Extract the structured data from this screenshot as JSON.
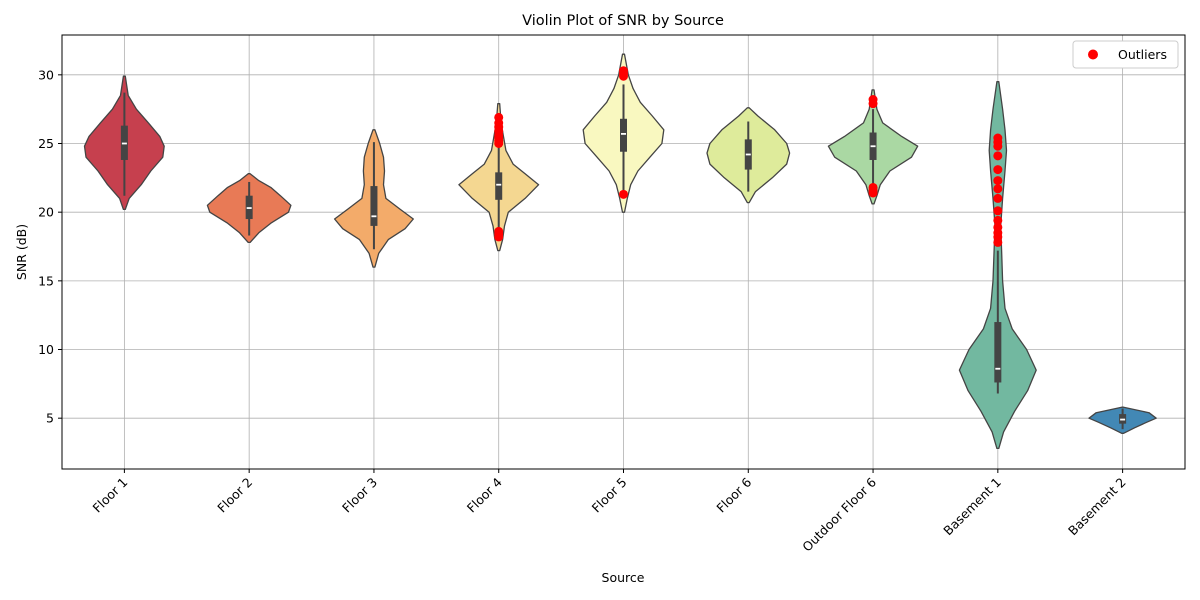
{
  "chart_data": {
    "type": "violin",
    "title": "Violin Plot of SNR by Source",
    "xlabel": "Source",
    "ylabel": "SNR (dB)",
    "ylim": [
      1.3,
      32.9
    ],
    "yticks": [
      5,
      10,
      15,
      20,
      25,
      30
    ],
    "grid": true,
    "legend": {
      "position": "top-right",
      "entries": [
        {
          "label": "Outliers",
          "color": "#ff0000"
        }
      ]
    },
    "categories": [
      "Floor 1",
      "Floor 2",
      "Floor 3",
      "Floor 4",
      "Floor 5",
      "Floor 6",
      "Outdoor Floor 6",
      "Basement 1",
      "Basement 2"
    ],
    "series": [
      {
        "category": "Floor 1",
        "color": "#c6404e",
        "density": [
          [
            20.2,
            0.02
          ],
          [
            21,
            0.1
          ],
          [
            22,
            0.35
          ],
          [
            23,
            0.55
          ],
          [
            24,
            0.8
          ],
          [
            24.8,
            0.83
          ],
          [
            25.5,
            0.74
          ],
          [
            26.5,
            0.5
          ],
          [
            27.5,
            0.25
          ],
          [
            28.5,
            0.08
          ],
          [
            29.9,
            0.02
          ]
        ],
        "q1": 23.8,
        "median": 25.0,
        "q3": 26.3,
        "whisker_low": 21.2,
        "whisker_high": 28.7,
        "outliers": []
      },
      {
        "category": "Floor 2",
        "color": "#e87a56",
        "density": [
          [
            17.8,
            0.02
          ],
          [
            18.5,
            0.2
          ],
          [
            19.2,
            0.45
          ],
          [
            20,
            0.82
          ],
          [
            20.5,
            0.87
          ],
          [
            21.2,
            0.65
          ],
          [
            21.8,
            0.45
          ],
          [
            22.3,
            0.2
          ],
          [
            22.8,
            0.02
          ]
        ],
        "q1": 19.5,
        "median": 20.3,
        "q3": 21.2,
        "whisker_low": 18.3,
        "whisker_high": 22.2,
        "outliers": []
      },
      {
        "category": "Floor 3",
        "color": "#f3ab6a",
        "density": [
          [
            16,
            0.02
          ],
          [
            17,
            0.1
          ],
          [
            18,
            0.3
          ],
          [
            18.8,
            0.65
          ],
          [
            19.5,
            0.82
          ],
          [
            20.2,
            0.55
          ],
          [
            21,
            0.25
          ],
          [
            22,
            0.2
          ],
          [
            23,
            0.22
          ],
          [
            24,
            0.2
          ],
          [
            25,
            0.12
          ],
          [
            26,
            0.02
          ]
        ],
        "q1": 19.0,
        "median": 19.7,
        "q3": 21.9,
        "whisker_low": 17.3,
        "whisker_high": 25.1,
        "outliers": []
      },
      {
        "category": "Floor 4",
        "color": "#f4d791",
        "density": [
          [
            17.2,
            0.02
          ],
          [
            18,
            0.08
          ],
          [
            19,
            0.12
          ],
          [
            20,
            0.2
          ],
          [
            21,
            0.55
          ],
          [
            22,
            0.83
          ],
          [
            22.8,
            0.55
          ],
          [
            23.5,
            0.3
          ],
          [
            24.5,
            0.15
          ],
          [
            25.5,
            0.1
          ],
          [
            26.5,
            0.05
          ],
          [
            27.9,
            0.02
          ]
        ],
        "q1": 20.9,
        "median": 22.0,
        "q3": 22.9,
        "whisker_low": 18.6,
        "whisker_high": 24.8,
        "outliers": [
          26.9,
          26.5,
          26.2,
          25.9,
          25.6,
          25.4,
          25.2,
          25.0,
          18.6,
          18.4,
          18.2
        ]
      },
      {
        "category": "Floor 5",
        "color": "#f9f8c0",
        "density": [
          [
            20,
            0.02
          ],
          [
            21,
            0.08
          ],
          [
            22,
            0.15
          ],
          [
            23,
            0.3
          ],
          [
            24,
            0.55
          ],
          [
            25,
            0.8
          ],
          [
            26,
            0.84
          ],
          [
            27,
            0.6
          ],
          [
            28,
            0.35
          ],
          [
            29,
            0.2
          ],
          [
            30,
            0.1
          ],
          [
            31.5,
            0.02
          ]
        ],
        "q1": 24.4,
        "median": 25.7,
        "q3": 26.8,
        "whisker_low": 21.4,
        "whisker_high": 29.3,
        "outliers": [
          30.3,
          30.1,
          29.9,
          21.3
        ]
      },
      {
        "category": "Floor 6",
        "color": "#deeb9b",
        "density": [
          [
            20.7,
            0.02
          ],
          [
            21.5,
            0.15
          ],
          [
            22.5,
            0.5
          ],
          [
            23.5,
            0.8
          ],
          [
            24.3,
            0.86
          ],
          [
            25,
            0.8
          ],
          [
            26,
            0.55
          ],
          [
            27,
            0.2
          ],
          [
            27.6,
            0.02
          ]
        ],
        "q1": 23.1,
        "median": 24.2,
        "q3": 25.3,
        "whisker_low": 21.5,
        "whisker_high": 26.6,
        "outliers": []
      },
      {
        "category": "Outdoor Floor 6",
        "color": "#aad8a3",
        "density": [
          [
            20.6,
            0.02
          ],
          [
            21.2,
            0.08
          ],
          [
            22,
            0.15
          ],
          [
            23,
            0.35
          ],
          [
            24,
            0.8
          ],
          [
            24.8,
            0.93
          ],
          [
            25.5,
            0.6
          ],
          [
            26.5,
            0.2
          ],
          [
            27.5,
            0.08
          ],
          [
            28.9,
            0.02
          ]
        ],
        "q1": 23.8,
        "median": 24.8,
        "q3": 25.8,
        "whisker_low": 21.9,
        "whisker_high": 27.5,
        "outliers": [
          28.2,
          27.9,
          21.8,
          21.6,
          21.4
        ]
      },
      {
        "category": "Basement 1",
        "color": "#72b8a0",
        "density": [
          [
            2.8,
            0.02
          ],
          [
            4,
            0.12
          ],
          [
            5.5,
            0.35
          ],
          [
            7,
            0.62
          ],
          [
            8.5,
            0.8
          ],
          [
            10,
            0.6
          ],
          [
            11.5,
            0.3
          ],
          [
            13,
            0.15
          ],
          [
            15,
            0.1
          ],
          [
            17,
            0.08
          ],
          [
            19,
            0.06
          ],
          [
            21,
            0.1
          ],
          [
            23,
            0.15
          ],
          [
            24.5,
            0.18
          ],
          [
            26,
            0.15
          ],
          [
            27.5,
            0.1
          ],
          [
            29.5,
            0.02
          ]
        ],
        "q1": 7.6,
        "median": 8.6,
        "q3": 12.0,
        "whisker_low": 6.8,
        "whisker_high": 17.2,
        "outliers": [
          25.4,
          25.1,
          24.8,
          24.1,
          23.1,
          22.3,
          21.7,
          21.0,
          20.1,
          19.4,
          18.9,
          18.5,
          18.2,
          17.8
        ]
      },
      {
        "category": "Basement 2",
        "color": "#4288b5",
        "density": [
          [
            3.9,
            0.02
          ],
          [
            4.3,
            0.25
          ],
          [
            4.7,
            0.5
          ],
          [
            5.0,
            0.7
          ],
          [
            5.4,
            0.55
          ],
          [
            5.8,
            0.02
          ]
        ],
        "q1": 4.6,
        "median": 4.9,
        "q3": 5.3,
        "whisker_low": 4.2,
        "whisker_high": 5.7,
        "outliers": []
      }
    ]
  }
}
